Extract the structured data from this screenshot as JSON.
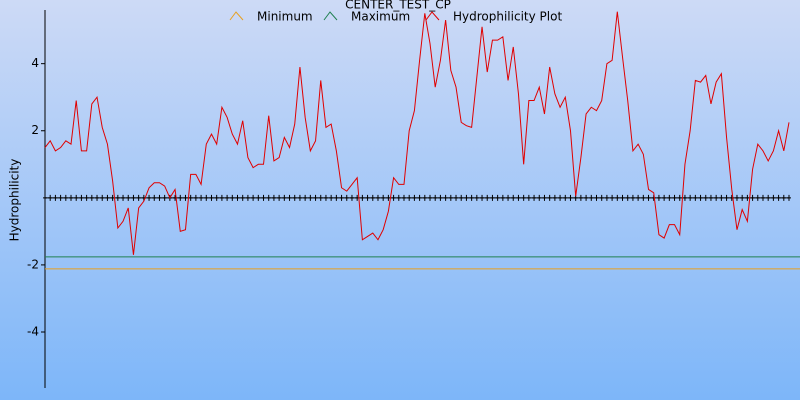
{
  "chart_data": {
    "type": "line",
    "title": "CENTER_TEST_CP",
    "y_label": "Hydrophilicity",
    "ylim": [
      -5.67,
      5.6
    ],
    "yticks": [
      -4,
      -2,
      2,
      4
    ],
    "series": [
      {
        "name": "Minimum",
        "color": "#e8a020",
        "values": [
          -2.12
        ]
      },
      {
        "name": "Maximum",
        "color": "#208050",
        "values": [
          -1.76
        ]
      },
      {
        "name": "Hydrophilicity Plot",
        "color": "#e00000",
        "values": [
          1.5,
          1.7,
          1.4,
          1.5,
          1.7,
          1.6,
          2.9,
          1.4,
          1.4,
          2.8,
          3.0,
          2.1,
          1.6,
          0.5,
          -0.9,
          -0.7,
          -0.3,
          -1.7,
          -0.3,
          -0.1,
          0.3,
          0.45,
          0.45,
          0.35,
          0,
          0.25,
          -1.0,
          -0.95,
          0.7,
          0.7,
          0.4,
          1.6,
          1.9,
          1.6,
          2.7,
          2.4,
          1.9,
          1.6,
          2.3,
          1.2,
          0.9,
          1.0,
          1.0,
          2.45,
          1.1,
          1.2,
          1.8,
          1.5,
          2.2,
          3.9,
          2.4,
          1.4,
          1.7,
          3.5,
          2.1,
          2.2,
          1.4,
          0.3,
          0.2,
          0.4,
          0.6,
          -1.25,
          -1.15,
          -1.05,
          -1.25,
          -0.95,
          -0.4,
          0.6,
          0.4,
          0.4,
          2.0,
          2.6,
          4.1,
          5.5,
          4.6,
          3.3,
          4.1,
          5.3,
          3.8,
          3.3,
          2.25,
          2.15,
          2.1,
          3.6,
          5.1,
          3.75,
          4.7,
          4.7,
          4.8,
          3.5,
          4.5,
          3.1,
          1.0,
          2.9,
          2.9,
          3.3,
          2.5,
          3.9,
          3.1,
          2.7,
          3.0,
          2.0,
          0.05,
          1.2,
          2.5,
          2.7,
          2.6,
          2.9,
          4.0,
          4.1,
          5.55,
          4.2,
          2.9,
          1.4,
          1.6,
          1.3,
          0.25,
          0.15,
          -1.1,
          -1.2,
          -0.8,
          -0.8,
          -1.1,
          1.0,
          2.0,
          3.5,
          3.45,
          3.65,
          2.8,
          3.45,
          3.7,
          1.8,
          0.25,
          -0.95,
          -0.35,
          -0.7,
          0.85,
          1.6,
          1.4,
          1.1,
          1.4,
          2.0,
          1.4,
          2.25
        ]
      }
    ]
  }
}
